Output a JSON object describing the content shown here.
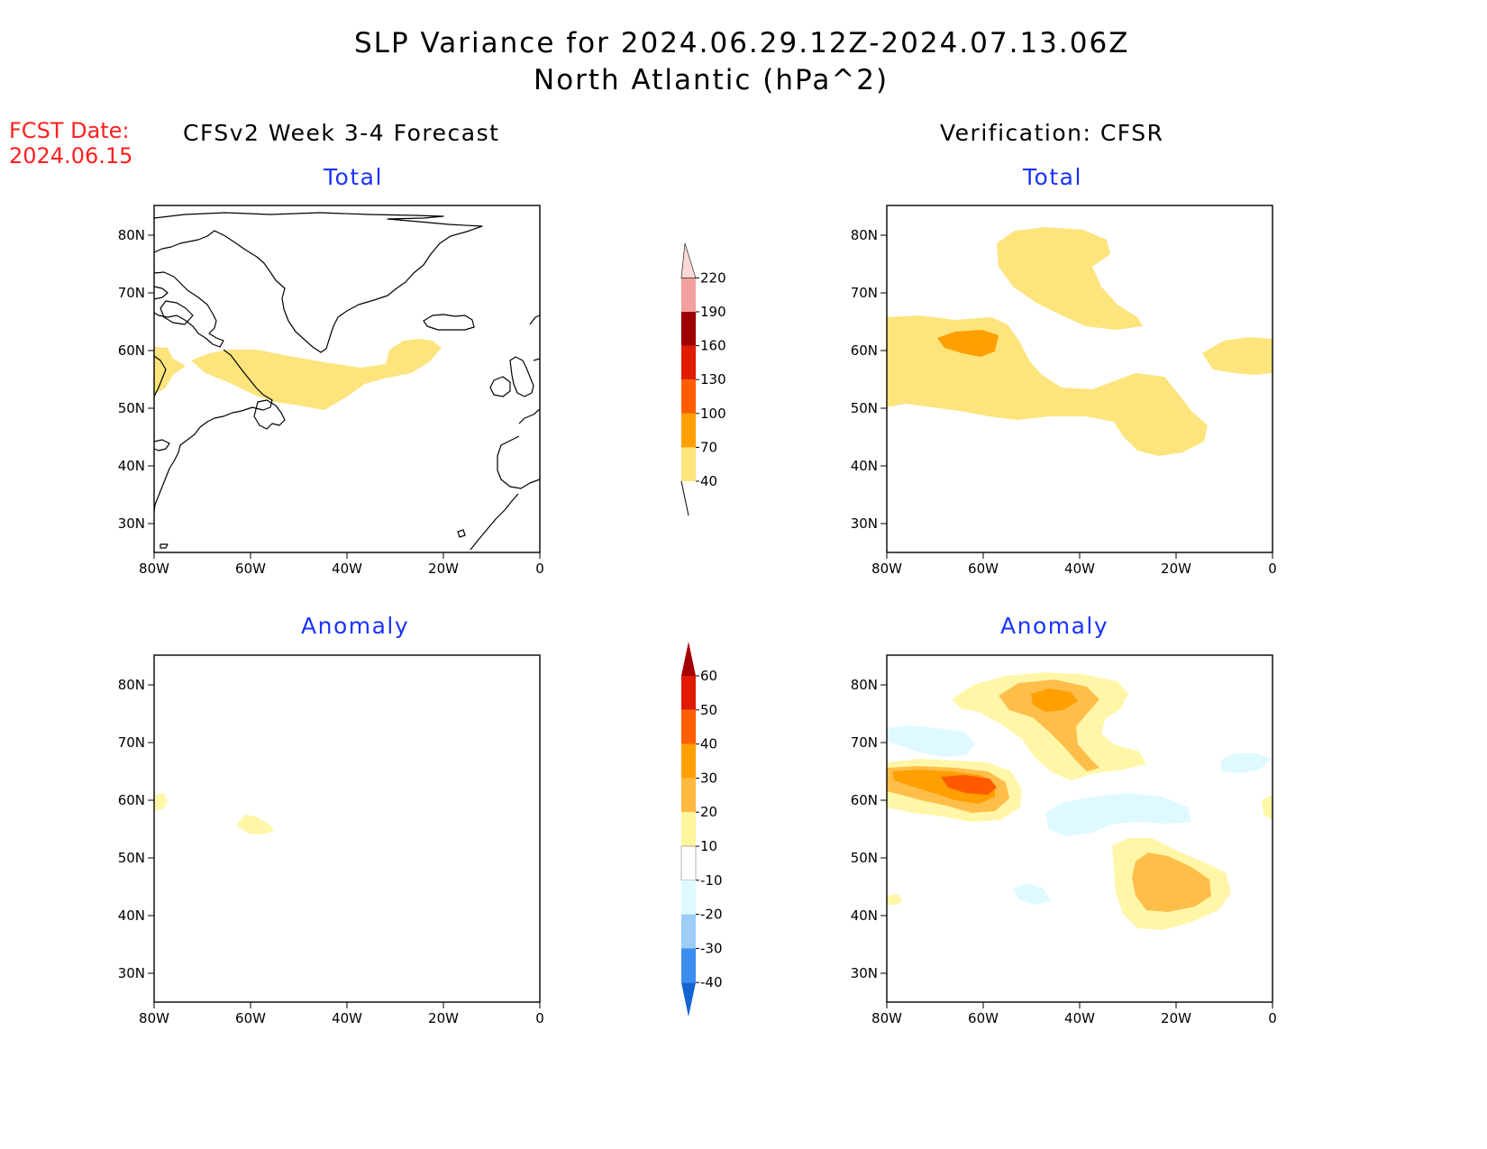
{
  "title": {
    "line1": "SLP Variance for 2024.06.29.12Z-2024.07.13.06Z",
    "line2": "North Atlantic (hPa^2)"
  },
  "fcst_date": {
    "label": "FCST Date:",
    "value": "2024.06.15"
  },
  "columns": {
    "left": "CFSv2 Week 3-4 Forecast",
    "right": "Verification: CFSR"
  },
  "panels": {
    "fc_total": "Total",
    "vf_total": "Total",
    "fc_anom": "Anomaly",
    "vf_anom": "Anomaly"
  },
  "map_axes": {
    "lon_ticks": [
      "80W",
      "60W",
      "40W",
      "20W",
      "0"
    ],
    "lat_ticks": [
      "80N",
      "70N",
      "60N",
      "50N",
      "40N",
      "30N"
    ]
  },
  "chart_data": {
    "type": "contour-map",
    "units": "hPa^2",
    "extent": {
      "lon": [
        -80,
        0
      ],
      "lat": [
        25,
        85
      ]
    },
    "total_colorbar": {
      "levels": [
        "40",
        "70",
        "100",
        "130",
        "160",
        "190",
        "220"
      ],
      "colors": [
        "#fde47c",
        "#ff9f00",
        "#ff5d00",
        "#e01d00",
        "#9e0000",
        "#f3a0a0",
        "#fdd9d5"
      ]
    },
    "anomaly_colorbar": {
      "levels": [
        "60",
        "50",
        "40",
        "30",
        "20",
        "10",
        "-10",
        "-20",
        "-30",
        "-40"
      ],
      "colors": [
        "#a50000",
        "#df1a00",
        "#ff5f00",
        "#ff9f00",
        "#ffb840",
        "#fff59e",
        "#ffffff",
        "#def9ff",
        "#9ccdf6",
        "#3b8ef0",
        "#1464d2"
      ]
    },
    "colors": {
      "yellow": "#fde47c",
      "orange": "#ff9f00",
      "dark_orange": "#ff5d00",
      "anom_light_yellow": "#fff6a8",
      "anom_mid": "#ffbe4a",
      "anom_orange": "#ff9f00",
      "anom_red": "#ff5a00",
      "anom_cyan": "#def9ff"
    }
  }
}
